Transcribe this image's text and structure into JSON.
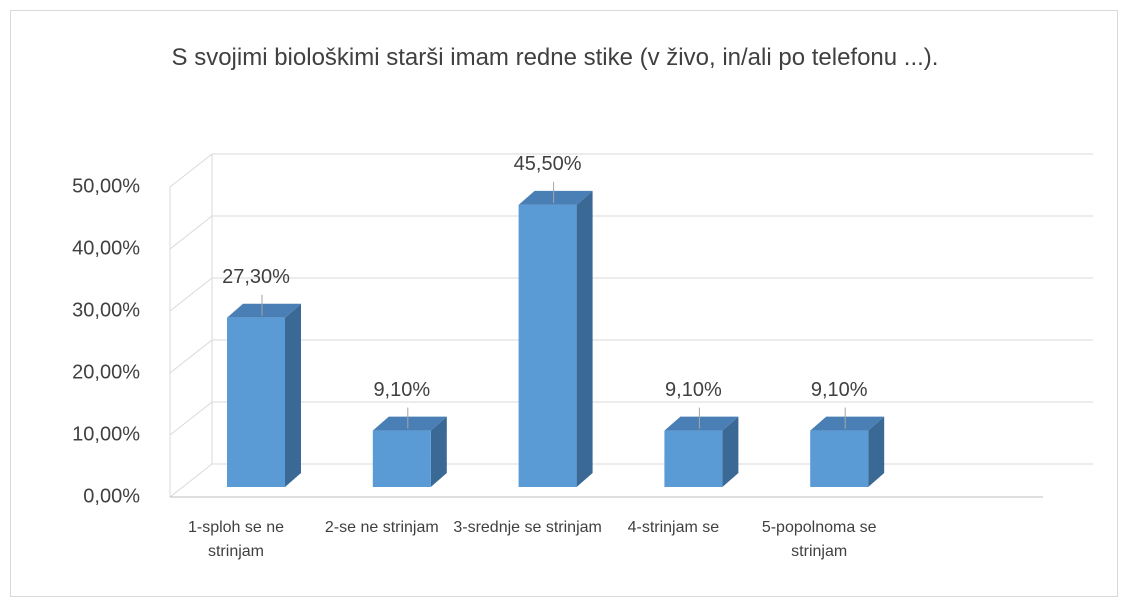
{
  "chart_data": {
    "type": "bar",
    "title": "S svojimi biološkimi starši imam redne stike (v živo, in/ali po telefonu ...).",
    "categories": [
      "1-sploh se ne strinjam",
      "2-se ne strinjam",
      "3-srednje se strinjam",
      "4-strinjam se",
      "5-popolnoma se strinjam"
    ],
    "values": [
      27.3,
      9.1,
      45.5,
      9.1,
      9.1
    ],
    "value_labels": [
      "27,30%",
      "9,10%",
      "45,50%",
      "9,10%",
      "9,10%"
    ],
    "color": "#5b9bd5",
    "ylim": [
      0,
      50
    ],
    "yticks": [
      {
        "value": 0,
        "label": "0,00%"
      },
      {
        "value": 10,
        "label": "10,00%"
      },
      {
        "value": 20,
        "label": "20,00%"
      },
      {
        "value": 30,
        "label": "30,00%"
      },
      {
        "value": 40,
        "label": "40,00%"
      },
      {
        "value": 50,
        "label": "50,00%"
      }
    ],
    "grid": true
  }
}
